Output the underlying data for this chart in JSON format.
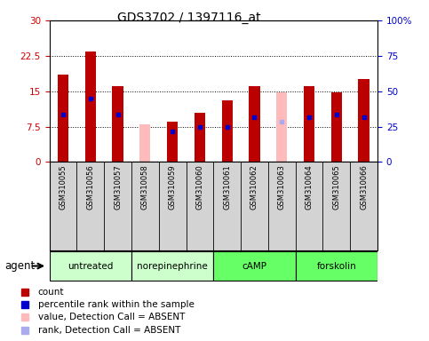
{
  "title": "GDS3702 / 1397116_at",
  "samples": [
    "GSM310055",
    "GSM310056",
    "GSM310057",
    "GSM310058",
    "GSM310059",
    "GSM310060",
    "GSM310061",
    "GSM310062",
    "GSM310063",
    "GSM310064",
    "GSM310065",
    "GSM310066"
  ],
  "count_values": [
    18.5,
    23.5,
    16.0,
    null,
    8.5,
    10.5,
    13.0,
    16.0,
    null,
    16.0,
    14.7,
    17.5
  ],
  "count_absent": [
    null,
    null,
    null,
    8.0,
    null,
    null,
    null,
    null,
    14.8,
    null,
    null,
    null
  ],
  "percentile_present": [
    10.0,
    13.5,
    10.0,
    null,
    6.5,
    7.5,
    7.5,
    9.5,
    null,
    9.5,
    10.0,
    9.5
  ],
  "percentile_absent": [
    null,
    null,
    null,
    null,
    null,
    null,
    null,
    null,
    8.5,
    null,
    null,
    null
  ],
  "groups": [
    {
      "label": "untreated",
      "indices": [
        0,
        1,
        2
      ],
      "color": "#ccffcc"
    },
    {
      "label": "norepinephrine",
      "indices": [
        3,
        4,
        5
      ],
      "color": "#ccffcc"
    },
    {
      "label": "cAMP",
      "indices": [
        6,
        7,
        8
      ],
      "color": "#66ff66"
    },
    {
      "label": "forskolin",
      "indices": [
        9,
        10,
        11
      ],
      "color": "#66ff66"
    }
  ],
  "ylim_left": [
    0,
    30
  ],
  "ylim_right": [
    0,
    100
  ],
  "yticks_left": [
    0,
    7.5,
    15,
    22.5,
    30
  ],
  "ytick_labels_left": [
    "0",
    "7.5",
    "15",
    "22.5",
    "30"
  ],
  "yticks_right": [
    0,
    25,
    50,
    75,
    100
  ],
  "ytick_labels_right": [
    "0",
    "25",
    "50",
    "75",
    "100%"
  ],
  "bar_color_count": "#bb0000",
  "bar_color_absent": "#ffbbbb",
  "dot_color_present": "#0000cc",
  "dot_color_absent": "#aaaaee",
  "bar_width": 0.4,
  "cell_color": "#d3d3d3",
  "background": "#ffffff",
  "agent_label": "agent"
}
